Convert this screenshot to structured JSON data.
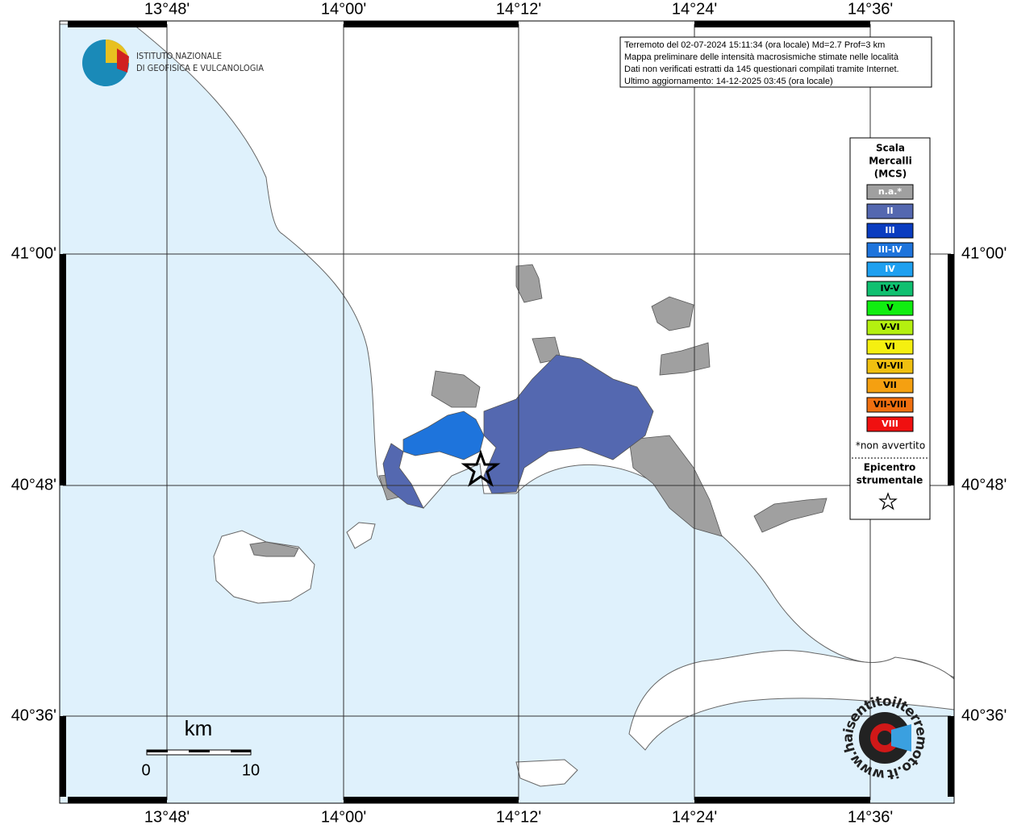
{
  "map": {
    "lon_labels": [
      "13°48'",
      "14°00'",
      "14°12'",
      "14°24'",
      "14°36'"
    ],
    "lat_labels": [
      "41°00'",
      "40°48'",
      "40°36'"
    ],
    "info": [
      "Terremoto del 02-07-2024 15:11:34 (ora locale) Md=2.7 Prof=3 km",
      "Mappa preliminare delle intensità macrosismiche stimate nelle località",
      "Dati non verificati estratti da 145 questionari compilati tramite Internet.",
      "Ultimo aggiornamento: 14-12-2025 03:45 (ora locale)"
    ],
    "logo": [
      "ISTITUTO NAZIONALE",
      "DI GEOFISICA E VULCANOLOGIA"
    ],
    "legend": {
      "title": [
        "Scala",
        "Mercalli",
        "(MCS)"
      ],
      "items": [
        {
          "label": "n.a.*",
          "color": "#a0a0a0"
        },
        {
          "label": "II",
          "color": "#5468b0"
        },
        {
          "label": "III",
          "color": "#0a3cc0"
        },
        {
          "label": "III-IV",
          "color": "#1e74dc"
        },
        {
          "label": "IV",
          "color": "#1ea0f0"
        },
        {
          "label": "IV-V",
          "color": "#10c070"
        },
        {
          "label": "V",
          "color": "#10ee10"
        },
        {
          "label": "V-VI",
          "color": "#b4f010"
        },
        {
          "label": "VI",
          "color": "#f5f010"
        },
        {
          "label": "VI-VII",
          "color": "#f0c010"
        },
        {
          "label": "VII",
          "color": "#f5a010"
        },
        {
          "label": "VII-VIII",
          "color": "#f07010"
        },
        {
          "label": "VIII",
          "color": "#f01010"
        }
      ],
      "note": "*non avvertito",
      "epicenter": [
        "Epicentro",
        "strumentale"
      ]
    },
    "scale": {
      "unit": "km",
      "labels": [
        "0",
        "10"
      ]
    },
    "watermark": "www.haisentitoilterremoto.it"
  }
}
